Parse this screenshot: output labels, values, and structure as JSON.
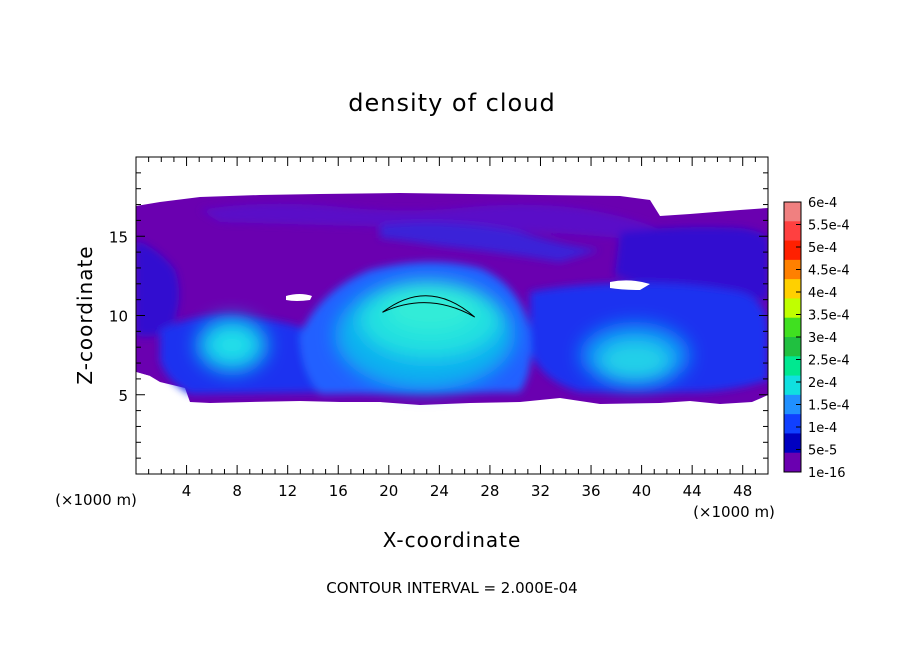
{
  "chart_data": {
    "type": "heatmap",
    "title": "density of cloud",
    "xlabel": "X-coordinate",
    "ylabel": "Z-coordinate",
    "x_unit_left": "(×1000 m)",
    "x_unit_right": "(×1000 m)",
    "footer": "CONTOUR INTERVAL = 2.000E-04",
    "xlim": [
      0,
      50
    ],
    "ylim": [
      0,
      20
    ],
    "xticks": [
      4,
      8,
      12,
      16,
      20,
      24,
      28,
      32,
      36,
      40,
      44,
      48
    ],
    "yticks": [
      5,
      10,
      15
    ],
    "colorbar": {
      "labels": [
        "6e-4",
        "5.5e-4",
        "5e-4",
        "4.5e-4",
        "4e-4",
        "3.5e-4",
        "3e-4",
        "2.5e-4",
        "2e-4",
        "1.5e-4",
        "1e-4",
        "5e-5",
        "1e-16"
      ],
      "colors": [
        "#f08080",
        "#ff4040",
        "#ff2000",
        "#ff8000",
        "#ffd000",
        "#c0ff00",
        "#40e020",
        "#20c040",
        "#00e890",
        "#10e0e0",
        "#2090ff",
        "#1040ff",
        "#0000c0",
        "#6a00b0"
      ]
    },
    "contour_line": {
      "level": "2e-4",
      "x_range": [
        19.5,
        26.8
      ],
      "z_peak": 11.3
    }
  }
}
